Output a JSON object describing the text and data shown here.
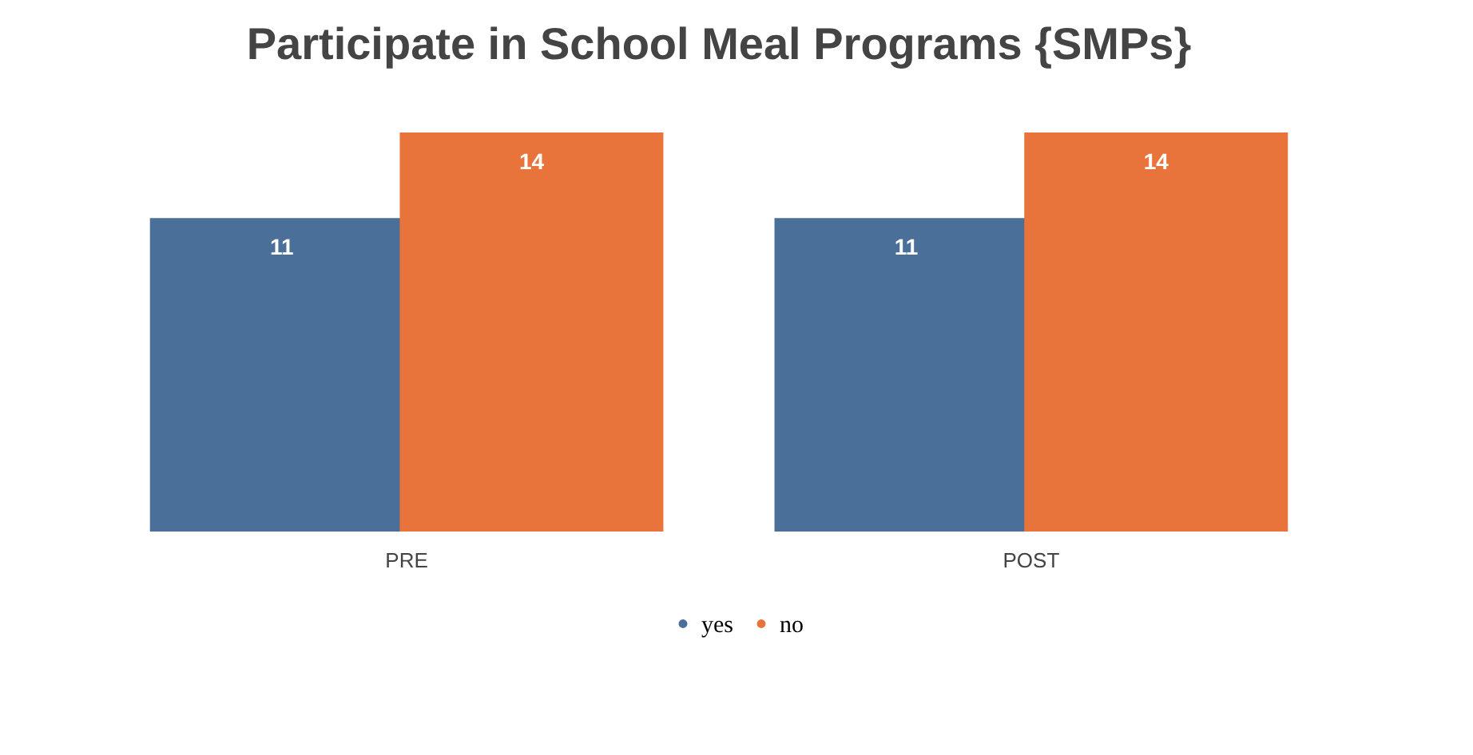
{
  "chart_data": {
    "type": "bar",
    "title": "Participate in School Meal Programs {SMPs}",
    "categories": [
      "PRE",
      "POST"
    ],
    "series": [
      {
        "name": "yes",
        "color": "#4a6f98",
        "values": [
          11,
          11
        ]
      },
      {
        "name": "no",
        "color": "#e8743b",
        "values": [
          14,
          14
        ]
      }
    ],
    "tick_labels": "x",
    "legend": "bottom",
    "data_labels": true
  }
}
